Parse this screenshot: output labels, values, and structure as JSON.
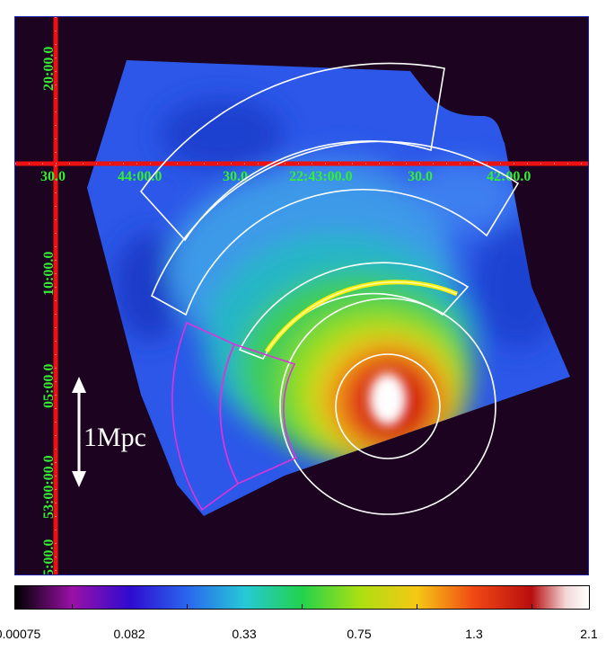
{
  "image": {
    "colors": {
      "background": "#1c0320",
      "grid_line": "#ee1111",
      "coord_text": "#33ee33",
      "regions": "#ffffff",
      "magenta_region": "#dd33dd",
      "yellow_arc": "#ffee00"
    }
  },
  "coords": {
    "ra_labels": [
      "30.0",
      "44:00.0",
      "30.0",
      "22:43:00.0",
      "30.0",
      "42:00.0"
    ],
    "dec_labels": [
      "20:00.0",
      "10:00.0",
      "05:00.0",
      "53:00:00.0",
      "5:00.0"
    ]
  },
  "scale_bar": {
    "label": "1Mpc"
  },
  "colorbar": {
    "labels": [
      "0.00075",
      "0.082",
      "0.33",
      "0.75",
      "1.3",
      "2.1"
    ]
  }
}
